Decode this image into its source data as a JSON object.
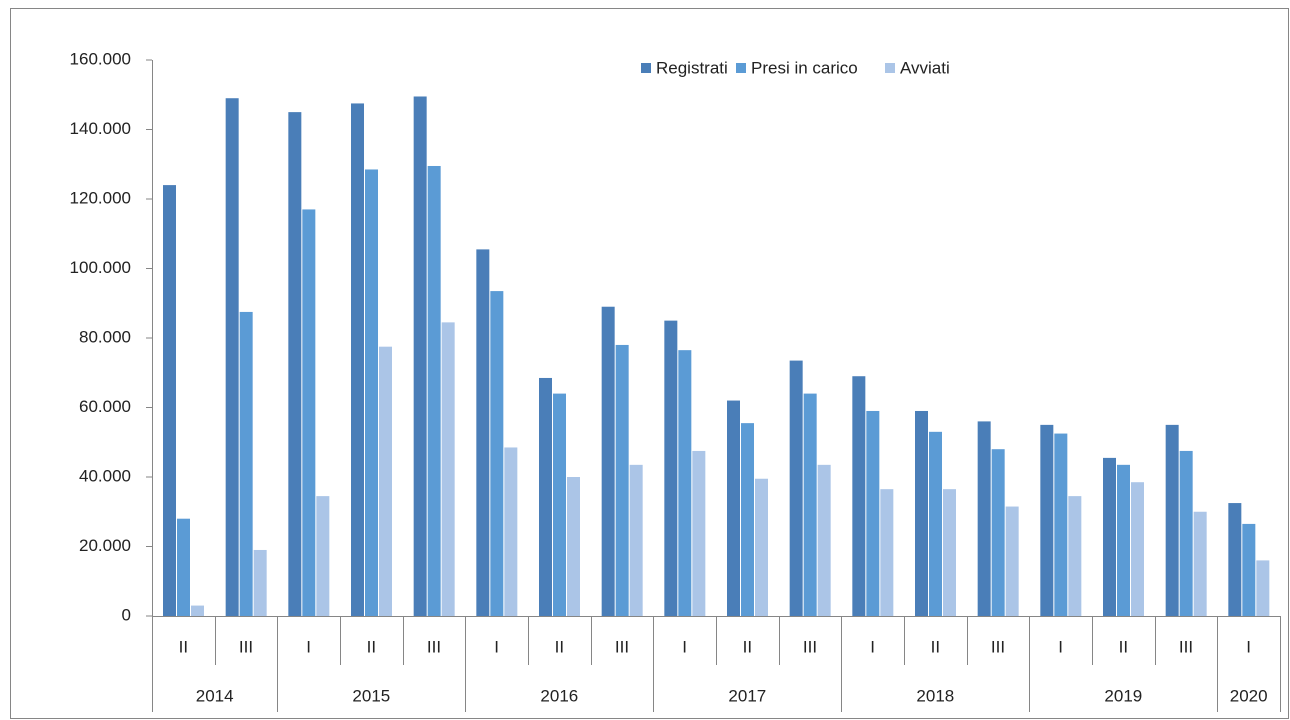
{
  "chart_data": {
    "type": "bar",
    "category_groups": [
      {
        "label": "2014",
        "categories": [
          "II",
          "III"
        ]
      },
      {
        "label": "2015",
        "categories": [
          "I",
          "II",
          "III"
        ]
      },
      {
        "label": "2016",
        "categories": [
          "I",
          "II",
          "III"
        ]
      },
      {
        "label": "2017",
        "categories": [
          "I",
          "II",
          "III"
        ]
      },
      {
        "label": "2018",
        "categories": [
          "I",
          "II",
          "III"
        ]
      },
      {
        "label": "2019",
        "categories": [
          "I",
          "II",
          "III"
        ]
      },
      {
        "label": "2020",
        "categories": [
          "I"
        ]
      }
    ],
    "series": [
      {
        "name": "Registrati",
        "color": "#4a7eb8",
        "values": [
          124000,
          149000,
          145000,
          147500,
          149500,
          105500,
          68500,
          89000,
          85000,
          62000,
          73500,
          69000,
          59000,
          56000,
          55000,
          45500,
          55000,
          32500
        ]
      },
      {
        "name": "Presi in carico",
        "color": "#5b9bd5",
        "values": [
          28000,
          87500,
          117000,
          128500,
          129500,
          93500,
          64000,
          78000,
          76500,
          55500,
          64000,
          59000,
          53000,
          48000,
          52500,
          43500,
          47500,
          26500
        ]
      },
      {
        "name": "Avviati",
        "color": "#abc5e7",
        "values": [
          3000,
          19000,
          34500,
          77500,
          84500,
          48500,
          40000,
          43500,
          47500,
          39500,
          43500,
          36500,
          36500,
          31500,
          34500,
          38500,
          30000,
          16000
        ]
      }
    ],
    "ylim": [
      0,
      160000
    ],
    "yticks": [
      0,
      {
        "value": 20000,
        "label": "20.000"
      },
      {
        "value": 40000,
        "label": "40.000"
      },
      {
        "value": 60000,
        "label": "60.000"
      },
      {
        "value": 80000,
        "label": "80.000"
      },
      {
        "value": 100000,
        "label": "100.000"
      },
      {
        "value": 120000,
        "label": "120.000"
      },
      {
        "value": 140000,
        "label": "140.000"
      },
      {
        "value": 160000,
        "label": "160.000"
      }
    ],
    "legend": "top-right"
  }
}
